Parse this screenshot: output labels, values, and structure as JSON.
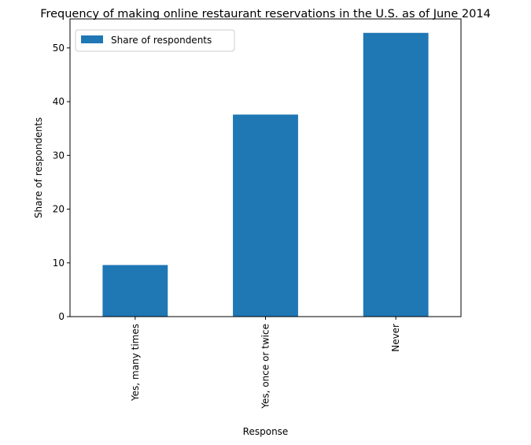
{
  "chart_data": {
    "type": "bar",
    "title": "Frequency of making online restaurant reservations in the U.S. as of June 2014",
    "xlabel": "Response",
    "ylabel": "Share of respondents",
    "categories": [
      "Yes, many times",
      "Yes, once or twice",
      "Never"
    ],
    "series": [
      {
        "name": "Share of respondents",
        "values": [
          9.6,
          37.6,
          52.8
        ],
        "color": "#1f77b4"
      }
    ],
    "ylim": [
      0,
      55.4
    ],
    "yticks": [
      0,
      10,
      20,
      30,
      40,
      50
    ],
    "grid": false,
    "legend": "top-left"
  }
}
